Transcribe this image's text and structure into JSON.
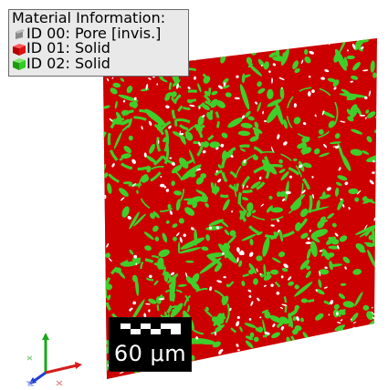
{
  "legend": {
    "title": "Material Information:",
    "items": [
      {
        "label": "ID 00: Pore [invis.]",
        "color": "#9a9a9a",
        "icon": "gray-cube-icon"
      },
      {
        "label": "ID 01: Solid",
        "color": "#e01010",
        "icon": "red-cube-icon"
      },
      {
        "label": "ID 02: Solid",
        "color": "#33cc22",
        "icon": "green-cube-icon"
      }
    ]
  },
  "scale_bar": {
    "label": "60 μm"
  },
  "render": {
    "background": "#ffffff",
    "solid_red": "#cc0000",
    "solid_green": "#3fcf2a",
    "pore": "#ffffff"
  }
}
